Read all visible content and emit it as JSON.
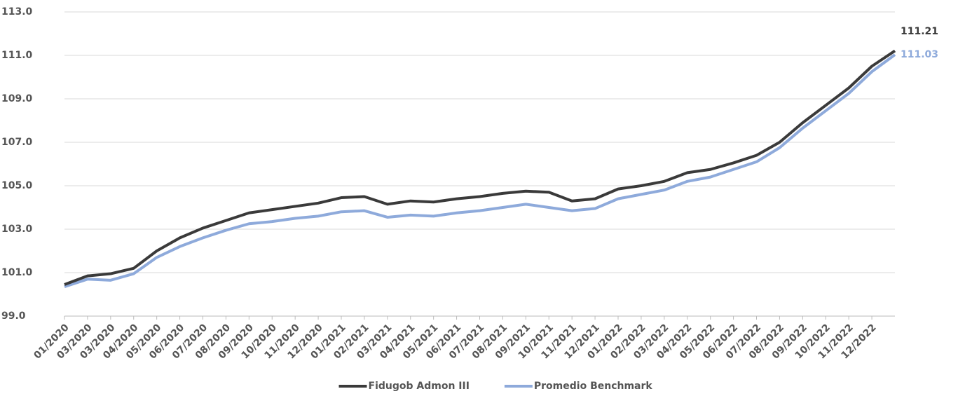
{
  "chart_data": {
    "type": "line",
    "categories": [
      "01/2020",
      "03/2020",
      "03/2020",
      "04/2020",
      "05/2020",
      "06/2020",
      "07/2020",
      "08/2020",
      "09/2020",
      "10/2020",
      "11/2020",
      "12/2020",
      "01/2021",
      "02/2021",
      "03/2021",
      "04/2021",
      "05/2021",
      "06/2021",
      "07/2021",
      "08/2021",
      "09/2021",
      "10/2021",
      "11/2021",
      "12/2021",
      "01/2022",
      "02/2022",
      "03/2022",
      "04/2022",
      "05/2022",
      "06/2022",
      "07/2022",
      "08/2022",
      "09/2022",
      "10/2022",
      "11/2022",
      "12/2022",
      null
    ],
    "series": [
      {
        "name": "Fidugob Admon III",
        "color": "#3a3a3a",
        "values": [
          100.45,
          100.85,
          100.95,
          101.2,
          102.0,
          102.6,
          103.05,
          103.4,
          103.75,
          103.9,
          104.05,
          104.2,
          104.45,
          104.5,
          104.15,
          104.3,
          104.25,
          104.4,
          104.5,
          104.65,
          104.75,
          104.7,
          104.3,
          104.4,
          104.85,
          105.0,
          105.2,
          105.6,
          105.75,
          106.05,
          106.4,
          107.0,
          107.9,
          108.7,
          109.5,
          110.5,
          111.21
        ]
      },
      {
        "name": "Promedio Benchmark",
        "color": "#8eaadb",
        "values": [
          100.35,
          100.7,
          100.65,
          100.95,
          101.7,
          102.2,
          102.6,
          102.95,
          103.25,
          103.35,
          103.5,
          103.6,
          103.8,
          103.85,
          103.55,
          103.65,
          103.6,
          103.75,
          103.85,
          104.0,
          104.15,
          104.0,
          103.85,
          103.95,
          104.4,
          104.6,
          104.8,
          105.2,
          105.4,
          105.75,
          106.1,
          106.75,
          107.65,
          108.45,
          109.25,
          110.25,
          111.03
        ]
      }
    ],
    "ylim": [
      99,
      113
    ],
    "yticks": [
      {
        "value": 99,
        "label": "99.0"
      },
      {
        "value": 101,
        "label": "101.0"
      },
      {
        "value": 103,
        "label": "103.0"
      },
      {
        "value": 105,
        "label": "105.0"
      },
      {
        "value": 107,
        "label": "107.0"
      },
      {
        "value": 109,
        "label": "109.0"
      },
      {
        "value": 111,
        "label": "111.0"
      },
      {
        "value": 113,
        "label": "113.0"
      }
    ],
    "grid": true,
    "legend": "bottom"
  }
}
